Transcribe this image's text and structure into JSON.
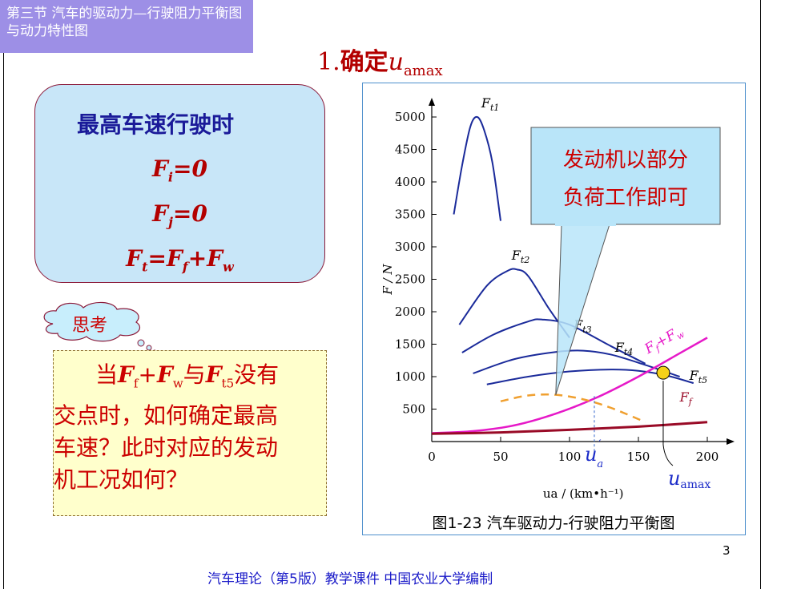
{
  "slide": {
    "section_title": "第三节  汽车的驱动力—行驶阻力平衡图与动力特性图",
    "heading_num": "1.",
    "heading_text": "确定",
    "heading_var": "u",
    "heading_sub": "amax",
    "conditions": {
      "title": "最高车速行驶时",
      "eq1": "Fi=0",
      "eq2": "Fj=0",
      "eq3": "Ft=Ff+Fw"
    },
    "think_label": "思考",
    "question_lines": [
      "当Ff+Fw与Ft5没有",
      "交点时，如何确定最高",
      "车速？此时对应的发动",
      "机工况如何？"
    ],
    "callout": [
      "发动机以部分",
      "负荷工作即可"
    ],
    "caption": "图1-23   汽车驱动力-行驶阻力平衡图",
    "page_number": "3",
    "footer": "汽车理论（第5版）教学课件    中国农业大学编制",
    "colors": {
      "section_bg": "#9d8fe6",
      "heading": "#b30000",
      "cond_bg": "#c8e6f8",
      "question_bg": "#ffffcc",
      "callout_bg": "#b9e5f9",
      "curve_ft": "#1a2a9a",
      "curve_fffw": "#e619c8",
      "curve_ff": "#990a26",
      "curve_partial": "#f0a030",
      "marker": "#f5d21a"
    }
  },
  "chart_data": {
    "type": "line",
    "xlabel": "ua / (km•h⁻¹)",
    "ylabel": "F / N",
    "xlim": [
      0,
      200
    ],
    "ylim": [
      0,
      5000
    ],
    "xticks": [
      0,
      50,
      100,
      150,
      200
    ],
    "yticks": [
      500,
      1000,
      1500,
      2000,
      2500,
      3000,
      3500,
      4000,
      4500,
      5000
    ],
    "grid": false,
    "series": [
      {
        "name": "Ft1",
        "x": [
          16,
          22,
          28,
          33,
          38,
          44,
          50
        ],
        "y": [
          3500,
          4250,
          4850,
          5000,
          4800,
          4300,
          3400
        ]
      },
      {
        "name": "Ft2",
        "x": [
          20,
          40,
          55,
          62,
          70,
          85,
          100
        ],
        "y": [
          1800,
          2400,
          2630,
          2650,
          2550,
          2050,
          1600
        ]
      },
      {
        "name": "Ft3",
        "x": [
          22,
          45,
          70,
          80,
          100,
          130,
          155
        ],
        "y": [
          1370,
          1650,
          1850,
          1880,
          1800,
          1470,
          1200
        ]
      },
      {
        "name": "Ft4",
        "x": [
          30,
          60,
          90,
          110,
          130,
          155,
          180
        ],
        "y": [
          1050,
          1270,
          1380,
          1400,
          1340,
          1180,
          1000
        ]
      },
      {
        "name": "Ft5",
        "x": [
          40,
          70,
          100,
          130,
          150,
          170,
          190
        ],
        "y": [
          880,
          1000,
          1080,
          1110,
          1090,
          1020,
          900
        ]
      },
      {
        "name": "Ff+Fw",
        "x": [
          0,
          30,
          60,
          90,
          120,
          150,
          180,
          200
        ],
        "y": [
          130,
          160,
          250,
          430,
          680,
          1000,
          1360,
          1600
        ]
      },
      {
        "name": "Ff",
        "x": [
          0,
          50,
          100,
          150,
          200
        ],
        "y": [
          120,
          140,
          180,
          230,
          300
        ]
      },
      {
        "name": "partial-load",
        "x": [
          50,
          70,
          90,
          110,
          130,
          155
        ],
        "y": [
          620,
          710,
          720,
          650,
          520,
          300
        ]
      }
    ],
    "annotations": {
      "label_ua": "u'a",
      "label_uamax": "uamax",
      "ua_prime": 118,
      "uamax": 168,
      "intersection": {
        "x": 168,
        "y": 1060
      }
    }
  }
}
